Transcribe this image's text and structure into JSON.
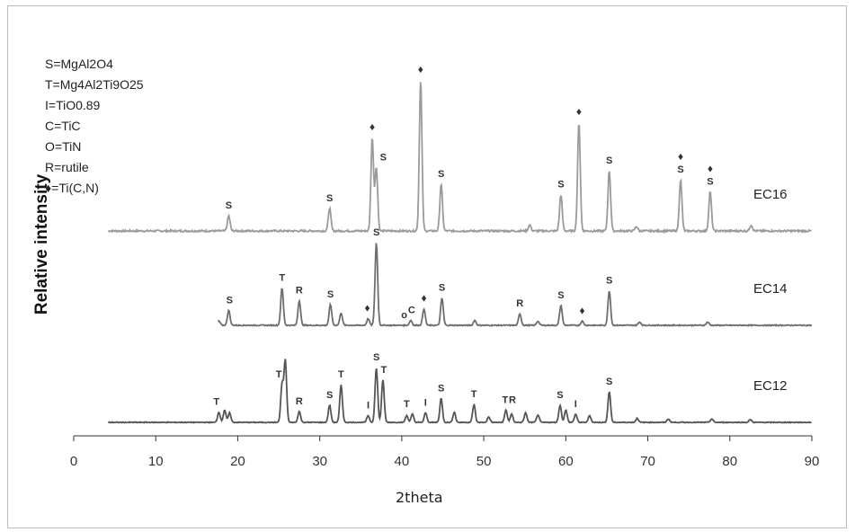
{
  "chart_data": {
    "type": "line",
    "xlabel": "2theta",
    "ylabel": "Relative intensity",
    "xlim": [
      0,
      90
    ],
    "xticks": [
      0,
      10,
      20,
      30,
      40,
      50,
      60,
      70,
      80,
      90
    ],
    "grid": false,
    "legend_placement": "top-left",
    "legend": [
      "S=MgAl2O4",
      "T=Mg4Al2Ti9O25",
      "I=TiO0.89",
      "C=TiC",
      "O=TiN",
      "R=rutile",
      "♦=Ti(C,N)"
    ],
    "series": [
      {
        "name": "EC16",
        "color": "#9a9a9a",
        "peaks": [
          {
            "x": 18.9,
            "h": 0.1,
            "label": "S"
          },
          {
            "x": 31.2,
            "h": 0.15,
            "label": "S"
          },
          {
            "x": 36.4,
            "h": 0.62,
            "label": "♦"
          },
          {
            "x": 36.9,
            "h": 0.42,
            "label": "S"
          },
          {
            "x": 42.3,
            "h": 1.0,
            "label": "♦"
          },
          {
            "x": 44.8,
            "h": 0.31,
            "label": "S"
          },
          {
            "x": 55.6,
            "h": 0.04,
            "label": ""
          },
          {
            "x": 59.4,
            "h": 0.24,
            "label": "S"
          },
          {
            "x": 61.6,
            "h": 0.72,
            "label": "♦"
          },
          {
            "x": 65.3,
            "h": 0.4,
            "label": "S"
          },
          {
            "x": 68.6,
            "h": 0.03,
            "label": ""
          },
          {
            "x": 74.0,
            "h": 0.34,
            "label": "♦"
          },
          {
            "x": 77.6,
            "h": 0.26,
            "label": "♦"
          },
          {
            "x": 82.6,
            "h": 0.04,
            "label": ""
          }
        ],
        "annotations": [
          {
            "x": 18.9,
            "text": "S"
          },
          {
            "x": 31.2,
            "text": "S"
          },
          {
            "x": 36.4,
            "text": "♦"
          },
          {
            "x": 37.3,
            "text": "S"
          },
          {
            "x": 42.3,
            "text": "♦"
          },
          {
            "x": 44.8,
            "text": "S"
          },
          {
            "x": 59.4,
            "text": "S"
          },
          {
            "x": 61.6,
            "text": "♦"
          },
          {
            "x": 65.3,
            "text": "S"
          },
          {
            "x": 74.0,
            "text": "S"
          },
          {
            "x": 74.0,
            "text": "♦"
          },
          {
            "x": 77.6,
            "text": "S"
          },
          {
            "x": 77.6,
            "text": "♦"
          }
        ]
      },
      {
        "name": "EC14",
        "color": "#6e6e6e",
        "peaks": [
          {
            "x": 17.7,
            "h": 0.05,
            "label": ""
          },
          {
            "x": 18.9,
            "h": 0.18,
            "label": "S"
          },
          {
            "x": 25.4,
            "h": 0.45,
            "label": "T"
          },
          {
            "x": 27.5,
            "h": 0.3,
            "label": "R"
          },
          {
            "x": 31.3,
            "h": 0.25,
            "label": "S"
          },
          {
            "x": 32.6,
            "h": 0.15,
            "label": ""
          },
          {
            "x": 35.9,
            "h": 0.08,
            "label": "♦"
          },
          {
            "x": 36.9,
            "h": 1.0,
            "label": "S"
          },
          {
            "x": 41.1,
            "h": 0.06,
            "label": "C"
          },
          {
            "x": 42.7,
            "h": 0.2,
            "label": "♦"
          },
          {
            "x": 44.9,
            "h": 0.33,
            "label": "S"
          },
          {
            "x": 48.9,
            "h": 0.06,
            "label": ""
          },
          {
            "x": 54.4,
            "h": 0.14,
            "label": "R"
          },
          {
            "x": 56.6,
            "h": 0.05,
            "label": ""
          },
          {
            "x": 59.4,
            "h": 0.24,
            "label": "S"
          },
          {
            "x": 62.0,
            "h": 0.05,
            "label": "♦"
          },
          {
            "x": 65.3,
            "h": 0.42,
            "label": "S"
          },
          {
            "x": 69.0,
            "h": 0.04,
            "label": ""
          },
          {
            "x": 77.3,
            "h": 0.04,
            "label": ""
          }
        ],
        "annotations": [
          {
            "x": 19.0,
            "text": "S"
          },
          {
            "x": 25.4,
            "text": "T"
          },
          {
            "x": 27.5,
            "text": "R"
          },
          {
            "x": 31.3,
            "text": "S"
          },
          {
            "x": 35.8,
            "text": "♦"
          },
          {
            "x": 36.9,
            "text": "S"
          },
          {
            "x": 40.3,
            "text": "o"
          },
          {
            "x": 41.2,
            "text": "C"
          },
          {
            "x": 42.7,
            "text": "♦"
          },
          {
            "x": 44.9,
            "text": "S"
          },
          {
            "x": 54.4,
            "text": "R"
          },
          {
            "x": 59.4,
            "text": "S"
          },
          {
            "x": 62.0,
            "text": "♦"
          },
          {
            "x": 65.3,
            "text": "S"
          }
        ]
      },
      {
        "name": "EC12",
        "color": "#555555",
        "peaks": [
          {
            "x": 17.7,
            "h": 0.15,
            "label": "T"
          },
          {
            "x": 18.4,
            "h": 0.18,
            "label": ""
          },
          {
            "x": 19.0,
            "h": 0.14,
            "label": ""
          },
          {
            "x": 25.4,
            "h": 0.55,
            "label": "T"
          },
          {
            "x": 25.8,
            "h": 0.9,
            "label": ""
          },
          {
            "x": 27.5,
            "h": 0.16,
            "label": "R"
          },
          {
            "x": 31.2,
            "h": 0.25,
            "label": "S"
          },
          {
            "x": 32.6,
            "h": 0.55,
            "label": "T"
          },
          {
            "x": 35.9,
            "h": 0.1,
            "label": "I"
          },
          {
            "x": 36.9,
            "h": 0.8,
            "label": "S"
          },
          {
            "x": 37.7,
            "h": 0.62,
            "label": "T"
          },
          {
            "x": 40.6,
            "h": 0.1,
            "label": "T"
          },
          {
            "x": 41.3,
            "h": 0.12,
            "label": ""
          },
          {
            "x": 42.9,
            "h": 0.14,
            "label": "I"
          },
          {
            "x": 44.8,
            "h": 0.35,
            "label": "S"
          },
          {
            "x": 46.4,
            "h": 0.15,
            "label": ""
          },
          {
            "x": 48.8,
            "h": 0.26,
            "label": "T"
          },
          {
            "x": 50.6,
            "h": 0.08,
            "label": ""
          },
          {
            "x": 52.7,
            "h": 0.18,
            "label": "T"
          },
          {
            "x": 53.4,
            "h": 0.12,
            "label": "R"
          },
          {
            "x": 55.1,
            "h": 0.14,
            "label": ""
          },
          {
            "x": 56.6,
            "h": 0.11,
            "label": ""
          },
          {
            "x": 59.3,
            "h": 0.25,
            "label": "S"
          },
          {
            "x": 60.0,
            "h": 0.18,
            "label": ""
          },
          {
            "x": 61.2,
            "h": 0.12,
            "label": "I"
          },
          {
            "x": 62.9,
            "h": 0.1,
            "label": ""
          },
          {
            "x": 65.3,
            "h": 0.45,
            "label": "S"
          },
          {
            "x": 68.7,
            "h": 0.06,
            "label": ""
          },
          {
            "x": 72.5,
            "h": 0.05,
            "label": ""
          },
          {
            "x": 77.8,
            "h": 0.05,
            "label": ""
          },
          {
            "x": 82.5,
            "h": 0.04,
            "label": ""
          }
        ],
        "annotations": [
          {
            "x": 17.4,
            "text": "T"
          },
          {
            "x": 25.0,
            "text": "T"
          },
          {
            "x": 27.5,
            "text": "R"
          },
          {
            "x": 31.2,
            "text": "S"
          },
          {
            "x": 32.6,
            "text": "T"
          },
          {
            "x": 35.9,
            "text": "I"
          },
          {
            "x": 36.9,
            "text": "S"
          },
          {
            "x": 37.8,
            "text": "T"
          },
          {
            "x": 40.6,
            "text": "T"
          },
          {
            "x": 42.9,
            "text": "I"
          },
          {
            "x": 44.8,
            "text": "S"
          },
          {
            "x": 48.8,
            "text": "T"
          },
          {
            "x": 52.6,
            "text": "T"
          },
          {
            "x": 53.5,
            "text": "R"
          },
          {
            "x": 59.3,
            "text": "S"
          },
          {
            "x": 61.2,
            "text": "I"
          },
          {
            "x": 65.3,
            "text": "S"
          }
        ]
      }
    ]
  }
}
